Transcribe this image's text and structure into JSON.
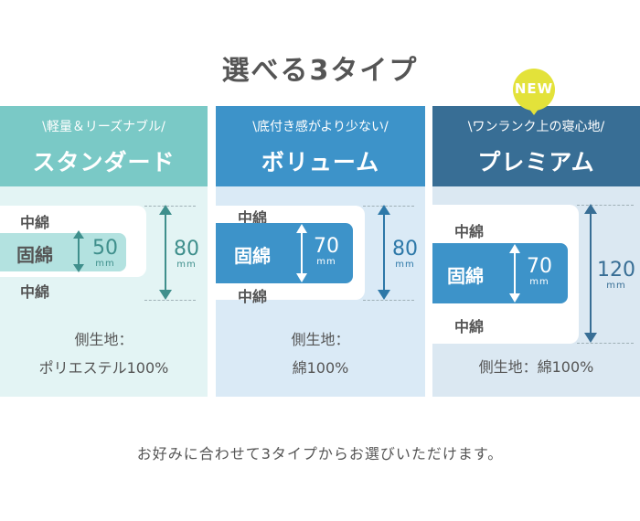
{
  "title": "選べる3タイプ",
  "badge": "NEW",
  "footer": "お好みに合わせて3タイプからお選びいただけます。",
  "colors": {
    "standard_accent": "#7ac9c6",
    "volume_accent": "#3d93c9",
    "premium_accent": "#386e95",
    "badge": "#e3e23a",
    "text": "#555555"
  },
  "types": [
    {
      "tagline": "\\軽量＆リーズナブル/",
      "name": "スタンダード",
      "top_layer": "中綿",
      "core": "固綿",
      "bottom_layer": "中綿",
      "core_thickness": "50",
      "core_unit": "mm",
      "total_thickness": "80",
      "total_unit": "mm",
      "fabric_line1": "側生地：",
      "fabric_line2": "ポリエステル100%"
    },
    {
      "tagline": "\\底付き感がより少ない/",
      "name": "ボリューム",
      "top_layer": "中綿",
      "core": "固綿",
      "bottom_layer": "中綿",
      "core_thickness": "70",
      "core_unit": "mm",
      "total_thickness": "80",
      "total_unit": "mm",
      "fabric_line1": "側生地：",
      "fabric_line2": "綿100%"
    },
    {
      "tagline": "\\ワンランク上の寝心地/",
      "name": "プレミアム",
      "top_layer": "中綿",
      "core": "固綿",
      "bottom_layer": "中綿",
      "core_thickness": "70",
      "core_unit": "mm",
      "total_thickness": "120",
      "total_unit": "mm",
      "fabric_line1": "側生地：綿100%"
    }
  ]
}
